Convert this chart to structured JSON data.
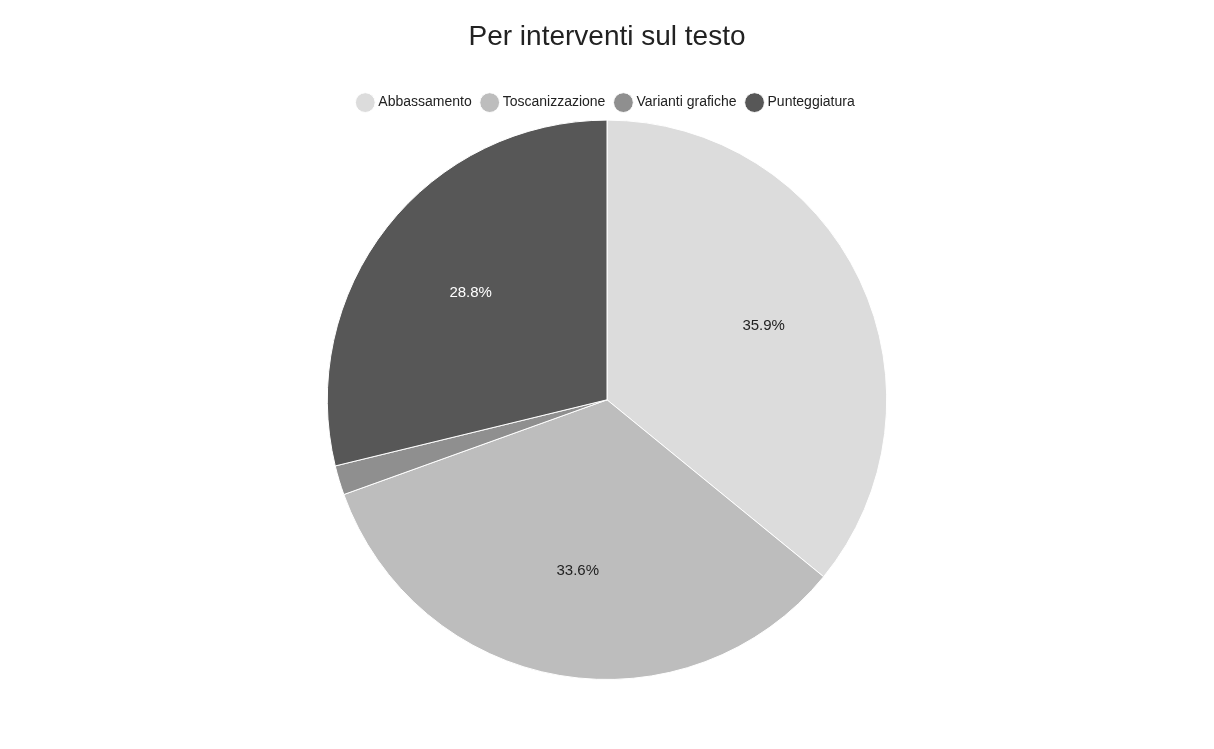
{
  "chart_data": {
    "type": "pie",
    "title": "Per interventi sul testo",
    "categories": [
      "Abbassamento",
      "Toscanizzazione",
      "Varianti grafiche",
      "Punteggiatura"
    ],
    "values": [
      35.9,
      33.6,
      1.7,
      28.8
    ],
    "colors": [
      "#dcdcdc",
      "#bdbdbd",
      "#8f8f8f",
      "#575757"
    ],
    "value_labels": [
      "35.9%",
      "33.6%",
      null,
      "28.8%"
    ],
    "legend": "top"
  }
}
